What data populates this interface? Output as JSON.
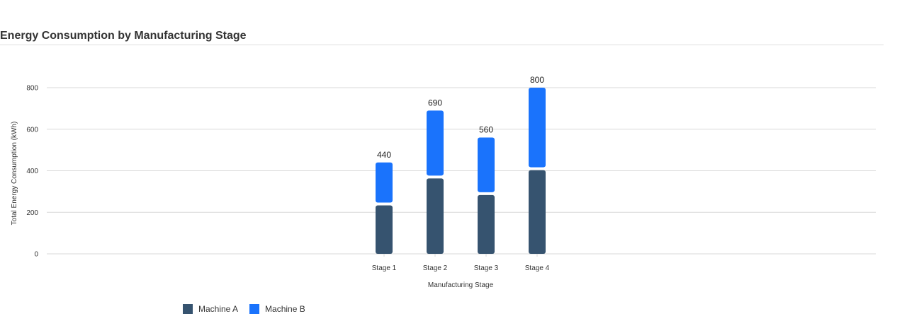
{
  "chart_data": {
    "type": "bar",
    "stacked": true,
    "title": "Energy Consumption by Manufacturing Stage",
    "xlabel": "Manufacturing Stage",
    "ylabel": "Total Energy Consumption (kWh)",
    "categories": [
      "Stage 1",
      "Stage 2",
      "Stage 3",
      "Stage 4"
    ],
    "series": [
      {
        "name": "Machine A",
        "values": [
          240,
          370,
          290,
          410
        ],
        "color": "#36536f"
      },
      {
        "name": "Machine B",
        "values": [
          200,
          320,
          270,
          390
        ],
        "color": "#1a73fc"
      }
    ],
    "totals": [
      440,
      690,
      560,
      800
    ],
    "yticks": [
      0,
      200,
      400,
      600,
      800
    ],
    "ylim": [
      0,
      800
    ],
    "grid": true,
    "legend": "bottom-left"
  }
}
